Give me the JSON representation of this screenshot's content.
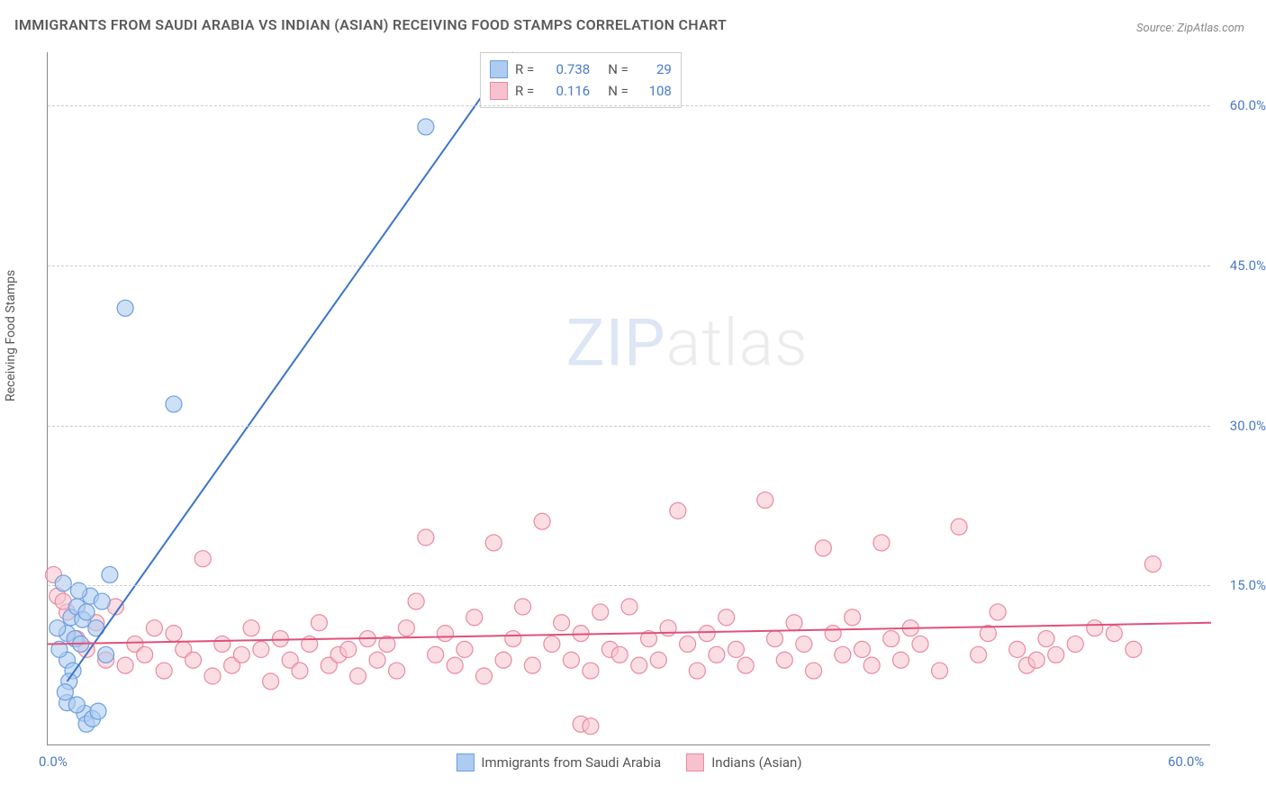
{
  "title": "IMMIGRANTS FROM SAUDI ARABIA VS INDIAN (ASIAN) RECEIVING FOOD STAMPS CORRELATION CHART",
  "source": "Source: ZipAtlas.com",
  "ylabel": "Receiving Food Stamps",
  "watermark_bold": "ZIP",
  "watermark_thin": "atlas",
  "chart": {
    "type": "scatter",
    "xlim": [
      0,
      60
    ],
    "ylim": [
      0,
      65
    ],
    "yticks": [
      15,
      30,
      45,
      60
    ],
    "ytick_labels": [
      "15.0%",
      "30.0%",
      "45.0%",
      "60.0%"
    ],
    "xticks": [
      0,
      60
    ],
    "xtick_labels": [
      "0.0%",
      "60.0%"
    ],
    "grid_color": "#cccccc",
    "axis_color": "#888888",
    "background_color": "#ffffff",
    "series": [
      {
        "name": "Immigrants from Saudi Arabia",
        "key": "saudi",
        "fill_color": "#aeccf0",
        "stroke_color": "#6b9fe0",
        "line_color": "#3b74c9",
        "R": "0.738",
        "N": "29",
        "marker_radius": 9,
        "marker_opacity": 0.6,
        "line_width": 2,
        "trend": {
          "x1": 1.0,
          "y1": 6.0,
          "x2": 24.0,
          "y2": 65.0
        },
        "points": [
          [
            0.8,
            15.2
          ],
          [
            1.2,
            12.0
          ],
          [
            1.0,
            10.5
          ],
          [
            1.5,
            13.0
          ],
          [
            0.5,
            11.0
          ],
          [
            1.8,
            11.8
          ],
          [
            1.0,
            8.0
          ],
          [
            1.3,
            7.0
          ],
          [
            2.0,
            12.5
          ],
          [
            2.2,
            14.0
          ],
          [
            0.6,
            9.0
          ],
          [
            1.4,
            10.0
          ],
          [
            1.7,
            9.5
          ],
          [
            2.5,
            11.0
          ],
          [
            2.8,
            13.5
          ],
          [
            1.1,
            6.0
          ],
          [
            1.0,
            4.0
          ],
          [
            1.9,
            3.0
          ],
          [
            2.0,
            2.0
          ],
          [
            2.3,
            2.5
          ],
          [
            2.6,
            3.2
          ],
          [
            1.5,
            3.8
          ],
          [
            0.9,
            5.0
          ],
          [
            3.0,
            8.5
          ],
          [
            3.2,
            16.0
          ],
          [
            4.0,
            41.0
          ],
          [
            6.5,
            32.0
          ],
          [
            19.5,
            58.0
          ],
          [
            1.6,
            14.5
          ]
        ]
      },
      {
        "name": "Indians (Asian)",
        "key": "indian",
        "fill_color": "#f7c2ce",
        "stroke_color": "#e88aa0",
        "line_color": "#e0517a",
        "R": "0.116",
        "N": "108",
        "marker_radius": 9,
        "marker_opacity": 0.55,
        "line_width": 2,
        "trend": {
          "x1": 0.0,
          "y1": 9.5,
          "x2": 60.0,
          "y2": 11.5
        },
        "points": [
          [
            0.5,
            14.0
          ],
          [
            1.0,
            12.5
          ],
          [
            1.5,
            10.0
          ],
          [
            2.0,
            9.0
          ],
          [
            2.5,
            11.5
          ],
          [
            3.0,
            8.0
          ],
          [
            3.5,
            13.0
          ],
          [
            4.0,
            7.5
          ],
          [
            4.5,
            9.5
          ],
          [
            5.0,
            8.5
          ],
          [
            5.5,
            11.0
          ],
          [
            6.0,
            7.0
          ],
          [
            6.5,
            10.5
          ],
          [
            7.0,
            9.0
          ],
          [
            7.5,
            8.0
          ],
          [
            8.0,
            17.5
          ],
          [
            8.5,
            6.5
          ],
          [
            9.0,
            9.5
          ],
          [
            9.5,
            7.5
          ],
          [
            10.0,
            8.5
          ],
          [
            10.5,
            11.0
          ],
          [
            11.0,
            9.0
          ],
          [
            11.5,
            6.0
          ],
          [
            12.0,
            10.0
          ],
          [
            12.5,
            8.0
          ],
          [
            13.0,
            7.0
          ],
          [
            13.5,
            9.5
          ],
          [
            14.0,
            11.5
          ],
          [
            14.5,
            7.5
          ],
          [
            15.0,
            8.5
          ],
          [
            15.5,
            9.0
          ],
          [
            16.0,
            6.5
          ],
          [
            16.5,
            10.0
          ],
          [
            17.0,
            8.0
          ],
          [
            17.5,
            9.5
          ],
          [
            18.0,
            7.0
          ],
          [
            18.5,
            11.0
          ],
          [
            19.0,
            13.5
          ],
          [
            19.5,
            19.5
          ],
          [
            20.0,
            8.5
          ],
          [
            20.5,
            10.5
          ],
          [
            21.0,
            7.5
          ],
          [
            21.5,
            9.0
          ],
          [
            22.0,
            12.0
          ],
          [
            22.5,
            6.5
          ],
          [
            23.0,
            19.0
          ],
          [
            23.5,
            8.0
          ],
          [
            24.0,
            10.0
          ],
          [
            24.5,
            13.0
          ],
          [
            25.0,
            7.5
          ],
          [
            25.5,
            21.0
          ],
          [
            26.0,
            9.5
          ],
          [
            26.5,
            11.5
          ],
          [
            27.0,
            8.0
          ],
          [
            27.5,
            10.5
          ],
          [
            27.5,
            2.0
          ],
          [
            28.0,
            7.0
          ],
          [
            28.0,
            1.8
          ],
          [
            28.5,
            12.5
          ],
          [
            29.0,
            9.0
          ],
          [
            29.5,
            8.5
          ],
          [
            30.0,
            13.0
          ],
          [
            30.5,
            7.5
          ],
          [
            31.0,
            10.0
          ],
          [
            31.5,
            8.0
          ],
          [
            32.0,
            11.0
          ],
          [
            32.5,
            22.0
          ],
          [
            33.0,
            9.5
          ],
          [
            33.5,
            7.0
          ],
          [
            34.0,
            10.5
          ],
          [
            34.5,
            8.5
          ],
          [
            35.0,
            12.0
          ],
          [
            35.5,
            9.0
          ],
          [
            36.0,
            7.5
          ],
          [
            37.0,
            23.0
          ],
          [
            37.5,
            10.0
          ],
          [
            38.0,
            8.0
          ],
          [
            38.5,
            11.5
          ],
          [
            39.0,
            9.5
          ],
          [
            39.5,
            7.0
          ],
          [
            40.0,
            18.5
          ],
          [
            40.5,
            10.5
          ],
          [
            41.0,
            8.5
          ],
          [
            41.5,
            12.0
          ],
          [
            42.0,
            9.0
          ],
          [
            42.5,
            7.5
          ],
          [
            43.0,
            19.0
          ],
          [
            43.5,
            10.0
          ],
          [
            44.0,
            8.0
          ],
          [
            44.5,
            11.0
          ],
          [
            45.0,
            9.5
          ],
          [
            46.0,
            7.0
          ],
          [
            47.0,
            20.5
          ],
          [
            48.0,
            8.5
          ],
          [
            48.5,
            10.5
          ],
          [
            49.0,
            12.5
          ],
          [
            50.0,
            9.0
          ],
          [
            50.5,
            7.5
          ],
          [
            51.0,
            8.0
          ],
          [
            51.5,
            10.0
          ],
          [
            52.0,
            8.5
          ],
          [
            53.0,
            9.5
          ],
          [
            54.0,
            11.0
          ],
          [
            55.0,
            10.5
          ],
          [
            56.0,
            9.0
          ],
          [
            57.0,
            17.0
          ],
          [
            0.3,
            16.0
          ],
          [
            0.8,
            13.5
          ]
        ]
      }
    ]
  },
  "legend_labels": {
    "R": "R =",
    "N": "N ="
  }
}
